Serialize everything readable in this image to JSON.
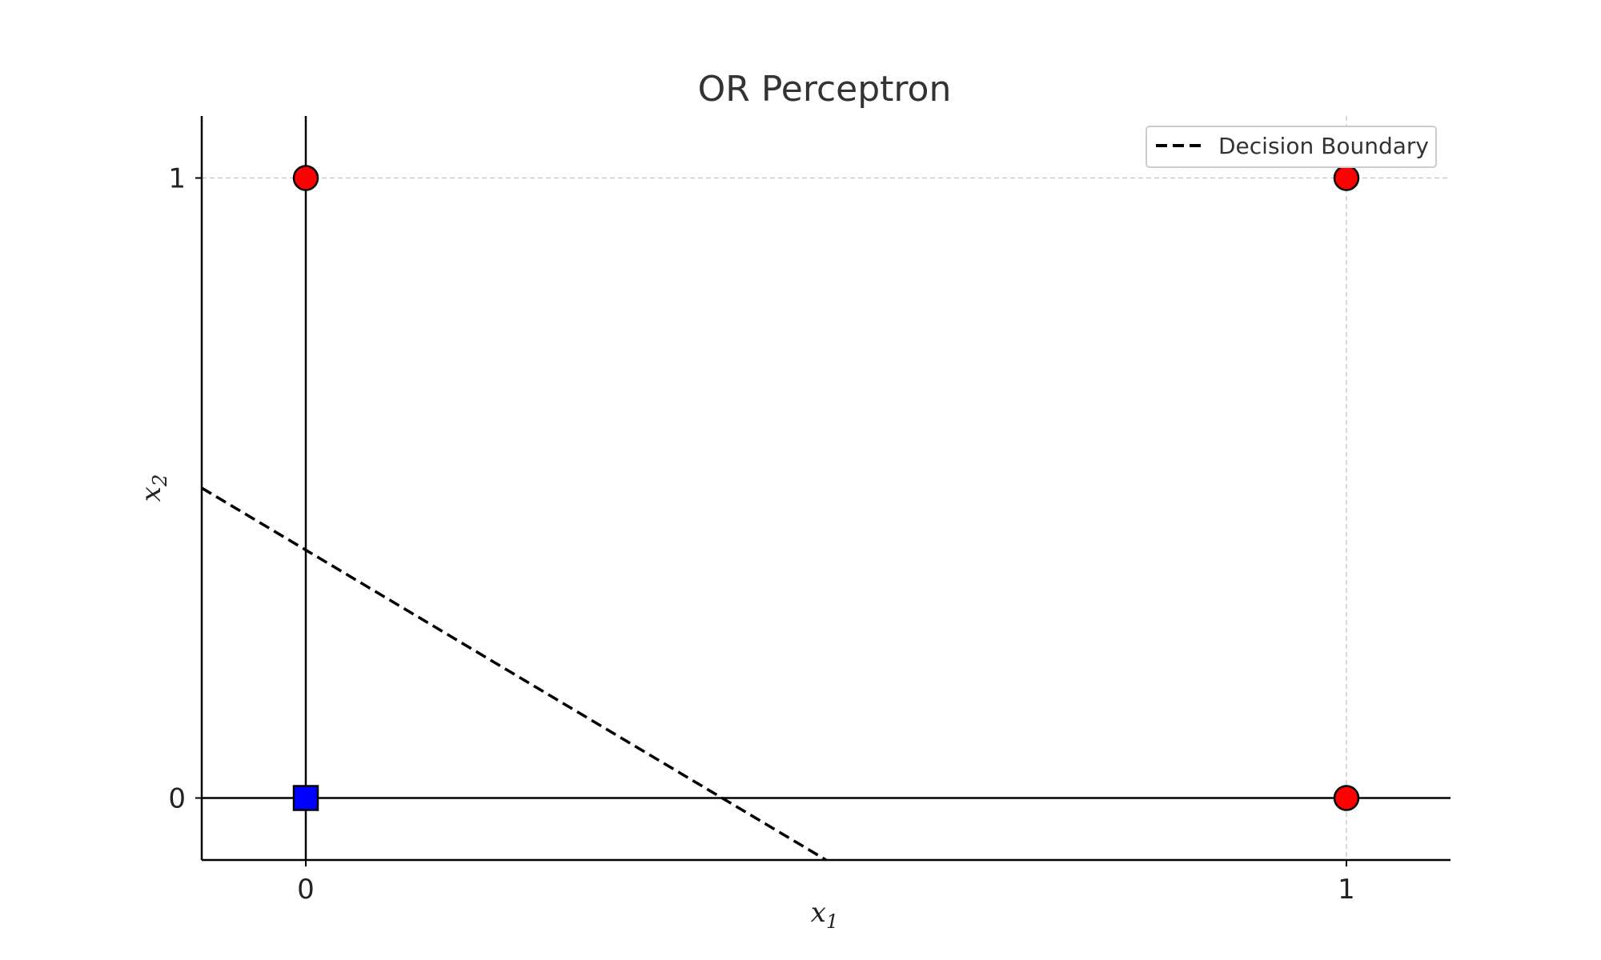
{
  "chart_data": {
    "type": "scatter",
    "title": "OR Perceptron",
    "xlabel": "x1",
    "ylabel": "x2",
    "xlabel_base": "x",
    "xlabel_sub": "1",
    "ylabel_base": "x",
    "ylabel_sub": "2",
    "xlim": [
      -0.1,
      1.1
    ],
    "ylim": [
      -0.1,
      1.1
    ],
    "xticks": [
      0,
      1
    ],
    "yticks": [
      0,
      1
    ],
    "grid": true,
    "legend_position": "top-right",
    "points": [
      {
        "x": 0,
        "y": 0,
        "label": 0,
        "marker": "square",
        "color": "#0000ff"
      },
      {
        "x": 0,
        "y": 1,
        "label": 1,
        "marker": "circle",
        "color": "#ff0000"
      },
      {
        "x": 1,
        "y": 0,
        "label": 1,
        "marker": "circle",
        "color": "#ff0000"
      },
      {
        "x": 1,
        "y": 1,
        "label": 1,
        "marker": "circle",
        "color": "#ff0000"
      }
    ],
    "decision_boundary": {
      "name": "Decision Boundary",
      "style": "dashed",
      "color": "#000000",
      "x": [
        -0.1,
        0.5
      ],
      "y": [
        0.5,
        -0.1
      ]
    }
  }
}
